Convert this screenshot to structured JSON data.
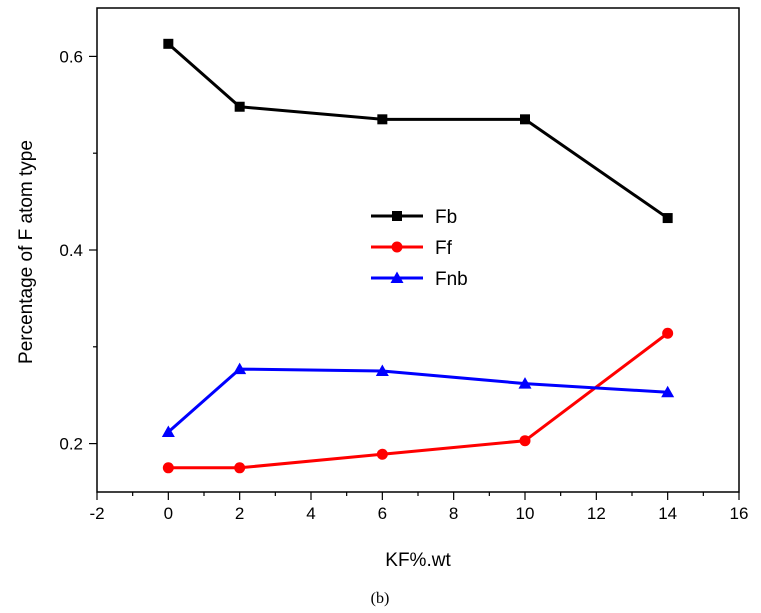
{
  "chart_data": {
    "type": "line",
    "xlabel": "KF%.wt",
    "ylabel": "Percentage of F atom type",
    "caption": "(b)",
    "xlim": [
      -2,
      16
    ],
    "ylim": [
      0.15,
      0.65
    ],
    "x_ticks": [
      -2,
      0,
      2,
      4,
      6,
      8,
      10,
      12,
      14,
      16
    ],
    "x_tick_labels": [
      "-2",
      "0",
      "2",
      "4",
      "6",
      "8",
      "10",
      "12",
      "14",
      "16"
    ],
    "y_ticks": [
      0.2,
      0.4,
      0.6
    ],
    "y_tick_labels": [
      "0.2",
      "0.4",
      "0.6"
    ],
    "y_minor_ticks": [
      0.3,
      0.5
    ],
    "legend_position": "center",
    "grid": false,
    "series": [
      {
        "name": "Fb",
        "color": "#000000",
        "marker": "square",
        "x": [
          0,
          2,
          6,
          10,
          14
        ],
        "y": [
          0.613,
          0.548,
          0.535,
          0.535,
          0.433
        ]
      },
      {
        "name": "Ff",
        "color": "#ff0000",
        "marker": "circle",
        "x": [
          0,
          2,
          6,
          10,
          14
        ],
        "y": [
          0.175,
          0.175,
          0.189,
          0.203,
          0.314
        ]
      },
      {
        "name": "Fnb",
        "color": "#0000ff",
        "marker": "triangle",
        "x": [
          0,
          2,
          6,
          10,
          14
        ],
        "y": [
          0.212,
          0.277,
          0.275,
          0.262,
          0.253
        ]
      }
    ]
  }
}
